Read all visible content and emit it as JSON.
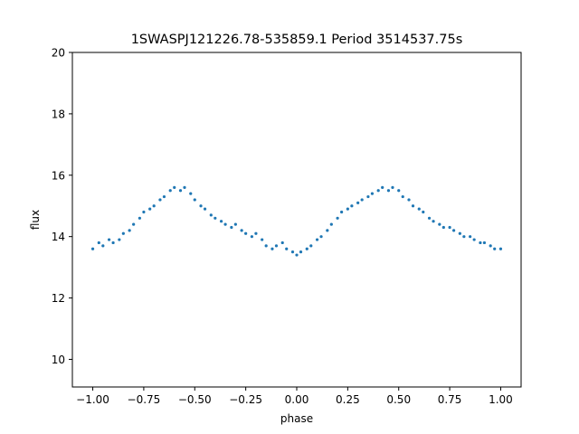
{
  "chart_data": {
    "type": "scatter",
    "title": "1SWASPJ121226.78-535859.1 Period 3514537.75s",
    "xlabel": "phase",
    "ylabel": "flux",
    "xlim": [
      -1.1,
      1.1
    ],
    "ylim": [
      9.1,
      20.0
    ],
    "xticks": [
      -1.0,
      -0.75,
      -0.5,
      -0.25,
      0.0,
      0.25,
      0.5,
      0.75,
      1.0
    ],
    "xtick_labels": [
      "−1.00",
      "−0.75",
      "−0.50",
      "−0.25",
      "0.00",
      "0.25",
      "0.50",
      "0.75",
      "1.00"
    ],
    "yticks": [
      10,
      12,
      14,
      16,
      18,
      20
    ],
    "ytick_labels": [
      "10",
      "12",
      "14",
      "16",
      "18",
      "20"
    ],
    "grid": false,
    "legend": "none",
    "point_color": "#1f77b4",
    "series": [
      {
        "x": [
          -1.0,
          -0.97,
          -0.95,
          -0.92,
          -0.9,
          -0.87,
          -0.85,
          -0.82,
          -0.8,
          -0.77,
          -0.75,
          -0.72,
          -0.7,
          -0.67,
          -0.65,
          -0.62,
          -0.6,
          -0.57,
          -0.55,
          -0.52,
          -0.5,
          -0.47,
          -0.45,
          -0.42,
          -0.4,
          -0.37,
          -0.35,
          -0.32,
          -0.3,
          -0.27,
          -0.25,
          -0.22,
          -0.2,
          -0.17,
          -0.15,
          -0.12,
          -0.1,
          -0.07,
          -0.05,
          -0.02,
          0.0,
          0.02,
          0.05,
          0.07,
          0.1,
          0.12,
          0.15,
          0.17,
          0.2,
          0.22,
          0.25,
          0.27,
          0.3,
          0.32,
          0.35,
          0.37,
          0.4,
          0.42,
          0.45,
          0.47,
          0.5,
          0.52,
          0.55,
          0.57,
          0.6,
          0.62,
          0.65,
          0.67,
          0.7,
          0.72,
          0.75,
          0.77,
          0.8,
          0.82,
          0.85,
          0.87,
          0.9,
          0.92,
          0.95,
          0.97,
          1.0
        ],
        "y": [
          13.6,
          13.8,
          13.7,
          13.9,
          13.8,
          13.9,
          14.1,
          14.2,
          14.4,
          14.6,
          14.8,
          14.9,
          15.0,
          15.2,
          15.3,
          15.5,
          15.6,
          15.5,
          15.6,
          15.4,
          15.2,
          15.0,
          14.9,
          14.7,
          14.6,
          14.5,
          14.4,
          14.3,
          14.4,
          14.2,
          14.1,
          14.0,
          14.1,
          13.9,
          13.7,
          13.6,
          13.7,
          13.8,
          13.6,
          13.5,
          13.4,
          13.5,
          13.6,
          13.7,
          13.9,
          14.0,
          14.2,
          14.4,
          14.6,
          14.8,
          14.9,
          15.0,
          15.1,
          15.2,
          15.3,
          15.4,
          15.5,
          15.6,
          15.5,
          15.6,
          15.5,
          15.3,
          15.2,
          15.0,
          14.9,
          14.8,
          14.6,
          14.5,
          14.4,
          14.3,
          14.3,
          14.2,
          14.1,
          14.0,
          14.0,
          13.9,
          13.8,
          13.8,
          13.7,
          13.6,
          13.6
        ]
      }
    ]
  }
}
